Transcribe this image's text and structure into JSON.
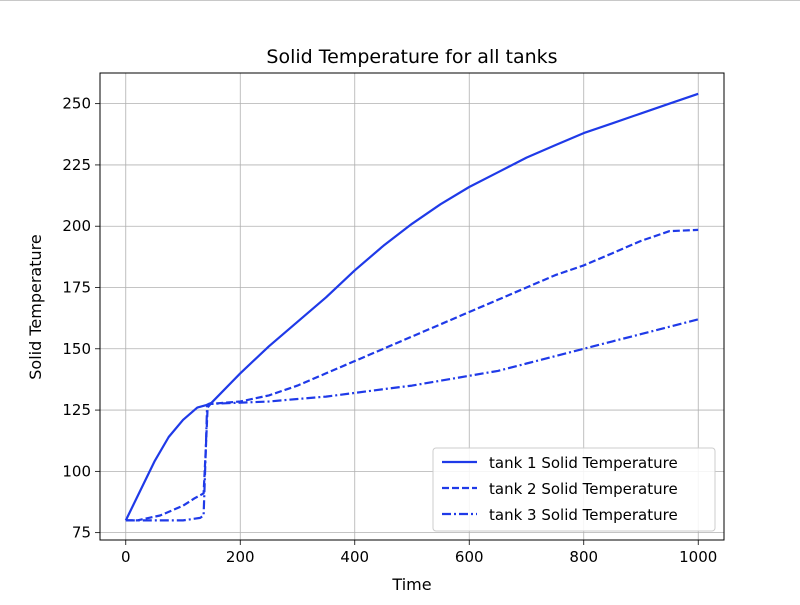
{
  "chart_data": {
    "type": "line",
    "title": "Solid Temperature for all tanks",
    "xlabel": "Time",
    "ylabel": "Solid Temperature",
    "xlim": [
      -45,
      1045
    ],
    "ylim": [
      72,
      262.5
    ],
    "xticks": [
      0,
      200,
      400,
      600,
      800,
      1000
    ],
    "yticks": [
      75,
      100,
      125,
      150,
      175,
      200,
      225,
      250
    ],
    "grid": true,
    "legend_position": "lower right",
    "line_color": "#1f3ae8",
    "series": [
      {
        "name": "tank 1 Solid Temperature",
        "style": "solid",
        "x": [
          0,
          25,
          50,
          75,
          100,
          125,
          140,
          150,
          200,
          250,
          300,
          350,
          400,
          450,
          500,
          550,
          600,
          650,
          700,
          750,
          800,
          850,
          900,
          950,
          1000
        ],
        "y": [
          80,
          92,
          104,
          114,
          121,
          126,
          127,
          128,
          140,
          151,
          161,
          171,
          182,
          192,
          201,
          209,
          216,
          222,
          228,
          233,
          238,
          242,
          246,
          250,
          254
        ]
      },
      {
        "name": "tank 2 Solid Temperature",
        "style": "dashed",
        "x": [
          0,
          20,
          40,
          60,
          80,
          100,
          120,
          136,
          140,
          143,
          148,
          200,
          250,
          300,
          350,
          400,
          450,
          500,
          550,
          600,
          650,
          700,
          750,
          800,
          850,
          900,
          950,
          1000
        ],
        "y": [
          80,
          80,
          81,
          82,
          84,
          86,
          89,
          91,
          110,
          126,
          127.5,
          128.5,
          131,
          135,
          140,
          145,
          150,
          155,
          160,
          165,
          170,
          175,
          180,
          184,
          189,
          194,
          198,
          198.5
        ]
      },
      {
        "name": "tank 3 Solid Temperature",
        "style": "dashdot",
        "x": [
          0,
          50,
          100,
          130,
          136,
          140,
          142,
          145,
          200,
          250,
          300,
          350,
          400,
          450,
          500,
          550,
          600,
          650,
          700,
          750,
          800,
          850,
          900,
          950,
          1000
        ],
        "y": [
          80,
          80,
          80,
          81,
          82,
          110,
          127,
          127.5,
          128,
          128.5,
          129.5,
          130.5,
          132,
          133.5,
          135,
          137,
          139,
          141,
          144,
          147,
          150,
          153,
          156,
          159,
          162
        ]
      }
    ]
  }
}
